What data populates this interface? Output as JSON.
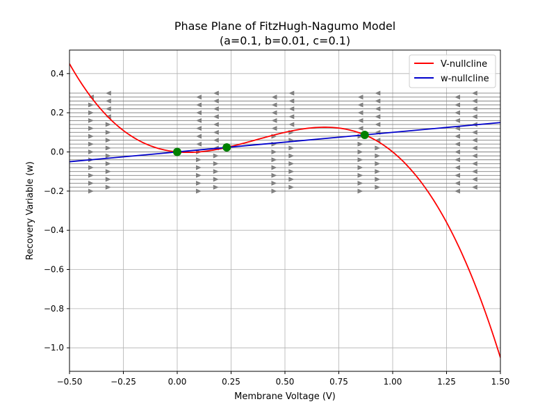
{
  "chart_data": {
    "type": "line",
    "title": "Phase Plane of FitzHugh-Nagumo Model",
    "subtitle": "(a=0.1, b=0.01, c=0.1)",
    "xlabel": "Membrane Voltage (V)",
    "ylabel": "Recovery Variable (w)",
    "xlim": [
      -0.5,
      1.5
    ],
    "ylim": [
      -1.12,
      0.52
    ],
    "xticks": [
      -0.5,
      -0.25,
      0.0,
      0.25,
      0.5,
      0.75,
      1.0,
      1.25,
      1.5
    ],
    "xtick_labels": [
      "−0.50",
      "−0.25",
      "0.00",
      "0.25",
      "0.50",
      "0.75",
      "1.00",
      "1.25",
      "1.50"
    ],
    "yticks": [
      0.4,
      0.2,
      0.0,
      -0.2,
      -0.4,
      -0.6,
      -0.8,
      -1.0
    ],
    "ytick_labels": [
      "0.4",
      "0.2",
      "0.0",
      "−0.2",
      "−0.4",
      "−0.6",
      "−0.8",
      "−1.0"
    ],
    "grid": true,
    "legend_position": "top-right",
    "series": [
      {
        "name": "V-nullcline",
        "color": "#ff0000",
        "x": [
          -0.5,
          -0.4,
          -0.3,
          -0.2,
          -0.1,
          0.0,
          0.1,
          0.2,
          0.3,
          0.4,
          0.5,
          0.6,
          0.7,
          0.8,
          0.9,
          1.0,
          1.1,
          1.2,
          1.3,
          1.4,
          1.5
        ],
        "y": [
          0.45,
          0.28,
          0.156,
          0.072,
          0.022,
          0.0,
          0.0,
          0.016,
          0.042,
          0.072,
          0.1,
          0.12,
          0.126,
          0.112,
          0.072,
          0.0,
          -0.11,
          -0.264,
          -0.468,
          -0.728,
          -1.05
        ]
      },
      {
        "name": "w-nullcline",
        "color": "#0000cc",
        "x": [
          -0.5,
          1.5
        ],
        "y": [
          -0.05,
          0.15
        ]
      }
    ],
    "fixed_points": {
      "color": "#008000",
      "x": [
        0.0,
        0.2298,
        0.8702
      ],
      "y": [
        0.0,
        0.023,
        0.087
      ]
    },
    "streamlines": {
      "color": "#808080",
      "w_values": [
        -0.2,
        -0.18,
        -0.16,
        -0.14,
        -0.12,
        -0.1,
        -0.08,
        -0.06,
        -0.04,
        -0.02,
        0.0,
        0.02,
        0.04,
        0.06,
        0.08,
        0.1,
        0.12,
        0.14,
        0.16,
        0.18,
        0.2,
        0.22,
        0.24,
        0.26,
        0.28,
        0.3
      ]
    }
  }
}
